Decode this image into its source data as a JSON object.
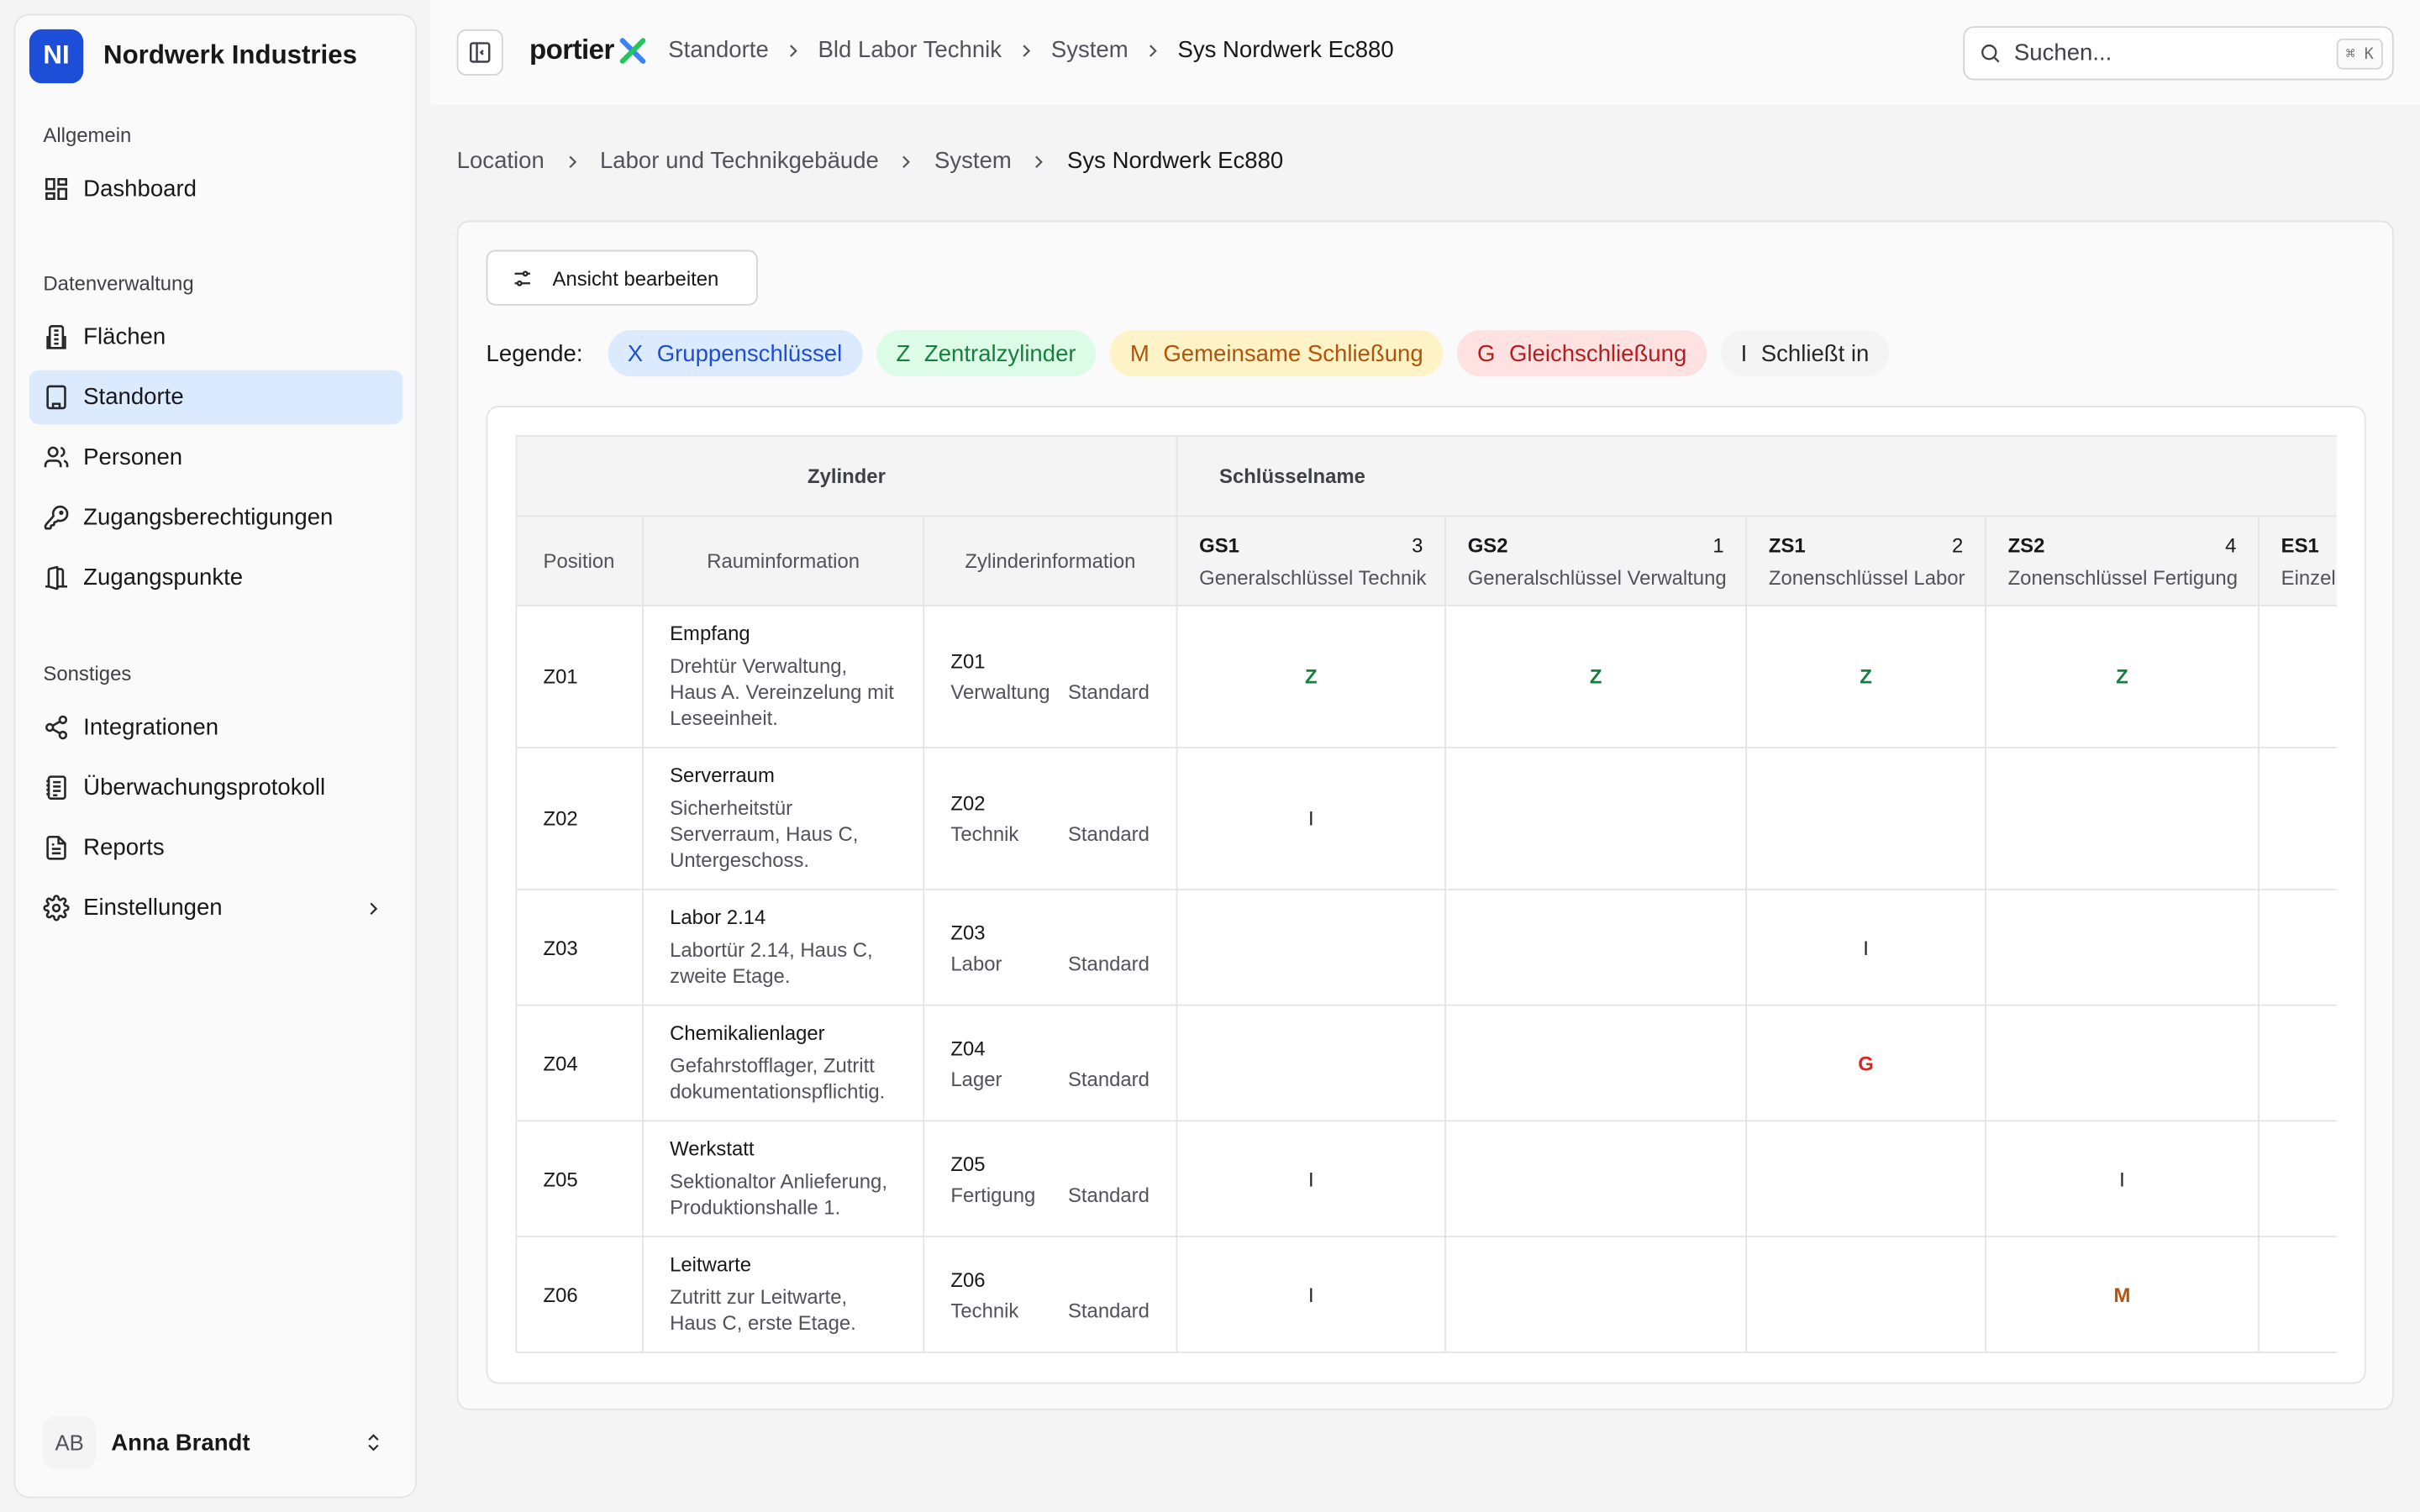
{
  "brand": {
    "initials": "NI",
    "name": "Nordwerk Industries"
  },
  "sidebar": {
    "sections": [
      {
        "label": "Allgemein"
      },
      {
        "label": "Datenverwaltung"
      },
      {
        "label": "Sonstiges"
      }
    ],
    "items": [
      {
        "label": "Dashboard",
        "icon": "dashboard-icon"
      },
      {
        "label": "Flächen",
        "icon": "building-icon"
      },
      {
        "label": "Standorte",
        "icon": "location-building-icon",
        "active": true
      },
      {
        "label": "Personen",
        "icon": "users-icon"
      },
      {
        "label": "Zugangsberechtigungen",
        "icon": "key-icon"
      },
      {
        "label": "Zugangspunkte",
        "icon": "door-icon"
      },
      {
        "label": "Integrationen",
        "icon": "share-icon"
      },
      {
        "label": "Überwachungsprotokoll",
        "icon": "log-icon"
      },
      {
        "label": "Reports",
        "icon": "report-icon"
      },
      {
        "label": "Einstellungen",
        "icon": "gear-icon"
      }
    ]
  },
  "user": {
    "initials": "AB",
    "name": "Anna Brandt"
  },
  "topbar": {
    "logo_text": "portier",
    "breadcrumb": [
      "Standorte",
      "Bld Labor Technik",
      "System",
      "Sys Nordwerk Ec880"
    ],
    "search_placeholder": "Suchen...",
    "search_shortcut": "⌘ K"
  },
  "breadcrumb": [
    "Location",
    "Labor und Technikgebäude",
    "System",
    "Sys Nordwerk Ec880"
  ],
  "toolbar": {
    "edit_view_label": "Ansicht bearbeiten"
  },
  "legend": {
    "label": "Legende:",
    "items": [
      {
        "symbol": "X",
        "label": "Gruppenschlüssel"
      },
      {
        "symbol": "Z",
        "label": "Zentralzylinder"
      },
      {
        "symbol": "M",
        "label": "Gemeinsame Schließung"
      },
      {
        "symbol": "G",
        "label": "Gleichschließung"
      },
      {
        "symbol": "I",
        "label": "Schließt in"
      }
    ]
  },
  "table": {
    "group_headers": {
      "cylinder": "Zylinder",
      "key_name": "Schlüsselname"
    },
    "columns": {
      "position": "Position",
      "room": "Rauminformation",
      "cylinder": "Zylinderinformation"
    },
    "keys": [
      {
        "code": "GS1",
        "count": "3",
        "name": "Generalschlüssel Technik"
      },
      {
        "code": "GS2",
        "count": "1",
        "name": "Generalschlüssel Verwaltung"
      },
      {
        "code": "ZS1",
        "count": "2",
        "name": "Zonenschlüssel Labor"
      },
      {
        "code": "ZS2",
        "count": "4",
        "name": "Zonenschlüssel Fertigung"
      },
      {
        "code": "ES1",
        "count": "",
        "name": "Einzelschlüssel"
      }
    ],
    "rows": [
      {
        "position": "Z01",
        "room_title": "Empfang",
        "room_desc": "Drehtür Verwaltung, Haus A. Vereinzelung mit Leseeinheit.",
        "cyl_id": "Z01",
        "cyl_area": "Verwaltung",
        "cyl_type": "Standard",
        "marks": [
          "Z",
          "Z",
          "Z",
          "Z",
          ""
        ]
      },
      {
        "position": "Z02",
        "room_title": "Serverraum",
        "room_desc": "Sicherheitstür Serverraum, Haus C, Untergeschoss.",
        "cyl_id": "Z02",
        "cyl_area": "Technik",
        "cyl_type": "Standard",
        "marks": [
          "I",
          "",
          "",
          "",
          ""
        ]
      },
      {
        "position": "Z03",
        "room_title": "Labor 2.14",
        "room_desc": "Labortür 2.14, Haus C, zweite Etage.",
        "cyl_id": "Z03",
        "cyl_area": "Labor",
        "cyl_type": "Standard",
        "marks": [
          "",
          "",
          "I",
          "",
          ""
        ]
      },
      {
        "position": "Z04",
        "room_title": "Chemikalienlager",
        "room_desc": "Gefahrstofflager, Zutritt dokumentationspflichtig.",
        "cyl_id": "Z04",
        "cyl_area": "Lager",
        "cyl_type": "Standard",
        "marks": [
          "",
          "",
          "G",
          "",
          ""
        ]
      },
      {
        "position": "Z05",
        "room_title": "Werkstatt",
        "room_desc": "Sektionaltor Anlieferung, Produktionshalle 1.",
        "cyl_id": "Z05",
        "cyl_area": "Fertigung",
        "cyl_type": "Standard",
        "marks": [
          "I",
          "",
          "",
          "I",
          ""
        ]
      },
      {
        "position": "Z06",
        "room_title": "Leitwarte",
        "room_desc": "Zutritt zur Leitwarte, Haus C, erste Etage.",
        "cyl_id": "Z06",
        "cyl_area": "Technik",
        "cyl_type": "Standard",
        "marks": [
          "I",
          "",
          "",
          "M",
          ""
        ]
      }
    ]
  }
}
